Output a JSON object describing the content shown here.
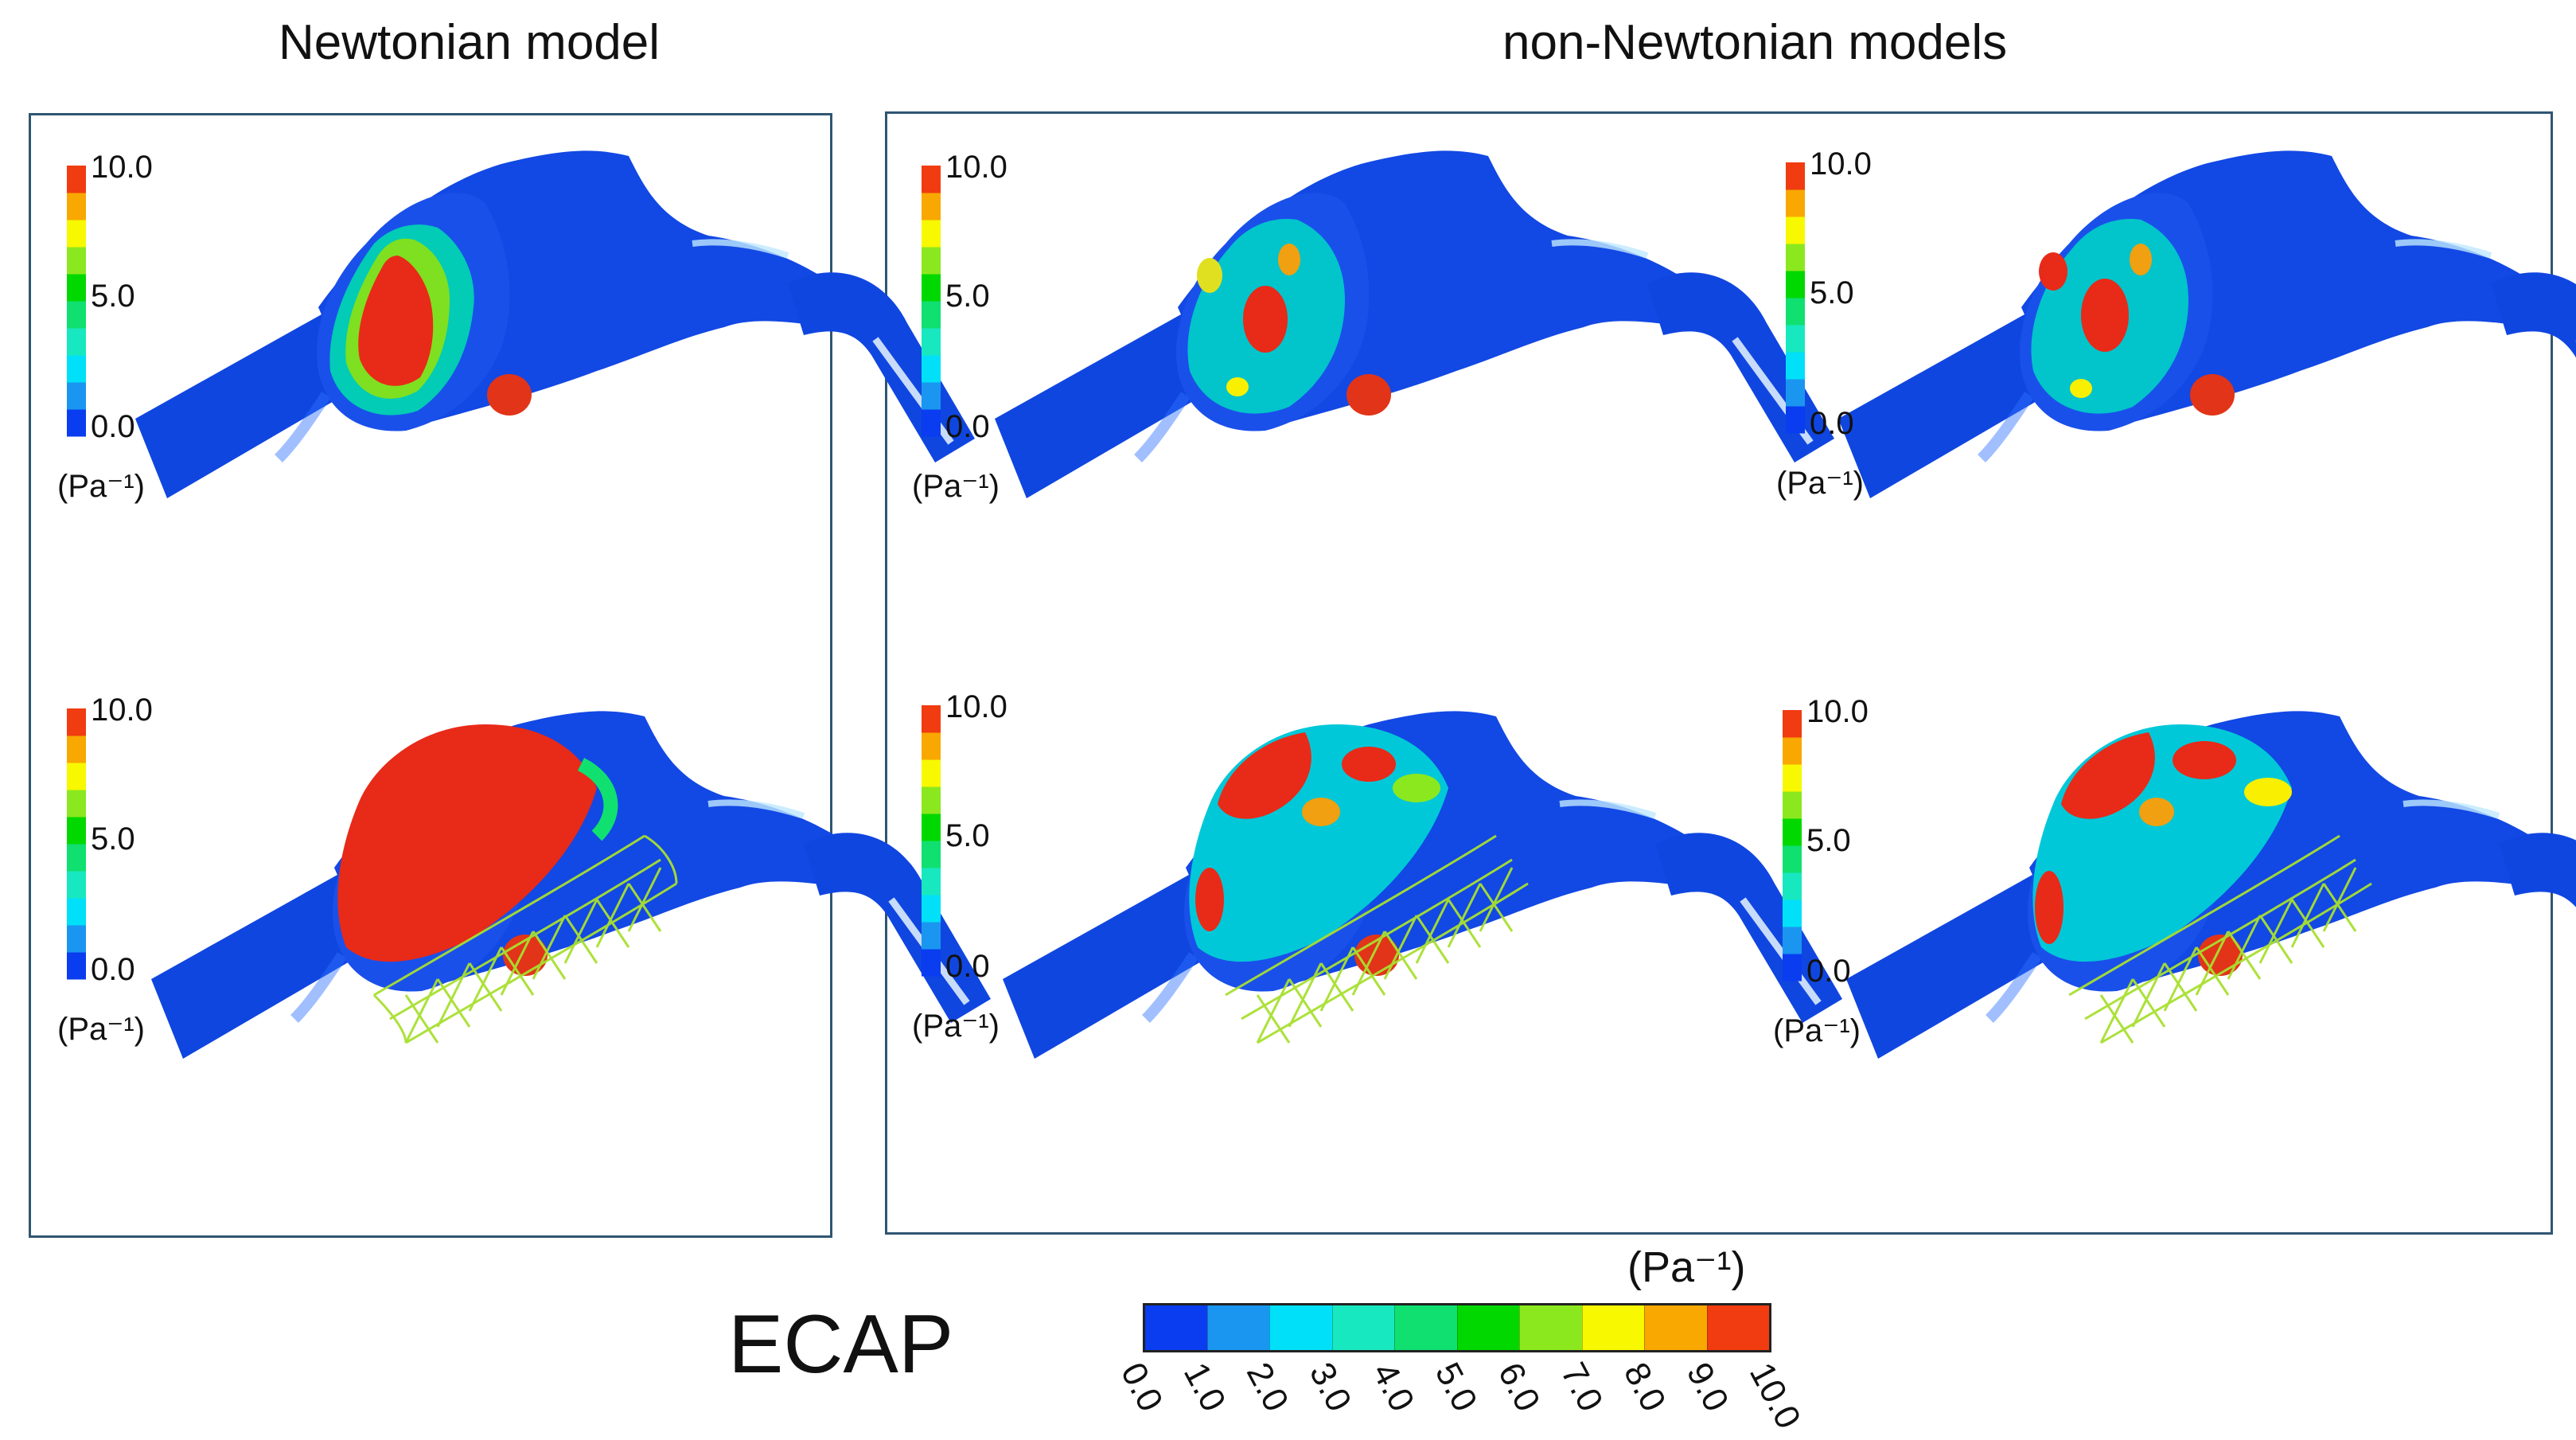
{
  "headers": {
    "newtonian": "Newtonian model",
    "non_newtonian": "non-Newtonian models"
  },
  "panel_legend": {
    "max": "10.0",
    "mid": "5.0",
    "min": "0.0",
    "unit": "(Pa⁻¹)"
  },
  "panels": [
    {
      "id": "newtonian-unstented",
      "model": "Newtonian",
      "stent": false
    },
    {
      "id": "non-newtonian-1-unstented",
      "model": "non-Newtonian",
      "stent": false
    },
    {
      "id": "non-newtonian-2-unstented",
      "model": "non-Newtonian",
      "stent": false
    },
    {
      "id": "newtonian-stented",
      "model": "Newtonian",
      "stent": true
    },
    {
      "id": "non-newtonian-1-stented",
      "model": "non-Newtonian",
      "stent": true
    },
    {
      "id": "non-newtonian-2-stented",
      "model": "non-Newtonian",
      "stent": true
    }
  ],
  "colorbar": {
    "title": "ECAP",
    "unit": "(Pa⁻¹)",
    "ticks": [
      "0.0",
      "1.0",
      "2.0",
      "3.0",
      "4.0",
      "5.0",
      "6.0",
      "7.0",
      "8.0",
      "9.0",
      "10.0"
    ],
    "colors": [
      "#0a3cf0",
      "#1a96f0",
      "#00e0f8",
      "#18e8c0",
      "#10e070",
      "#00d800",
      "#8ce81e",
      "#f8f800",
      "#f8a800",
      "#f03c10"
    ]
  }
}
